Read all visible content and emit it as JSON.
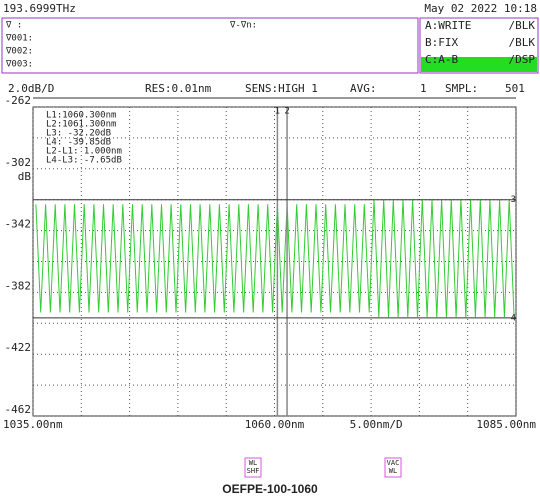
{
  "header": {
    "frequency": "193.6999THz",
    "datetime": "May 02 2022 10:18"
  },
  "marker_panel": {
    "lines": [
      "∇ :",
      "∇001:",
      "∇002:",
      "∇003:"
    ],
    "delta": "∇-∇n:"
  },
  "traces": [
    {
      "label": "A:WRITE",
      "mode": "/BLK",
      "color": "#3333ee"
    },
    {
      "label": "B:FIX",
      "mode": "/BLK",
      "color": "#ee3333"
    },
    {
      "label": "C:A-B",
      "mode": "/DSP",
      "color": "#ffffff"
    }
  ],
  "settings": [
    "2.0dB/D",
    "RES:0.01nm",
    "SENS:HIGH 1",
    "AVG:",
    "1",
    "SMPL:",
    "501"
  ],
  "chart_data": {
    "type": "line",
    "x": [
      1035.3,
      1035.8,
      1036.3,
      1036.8,
      1037.3,
      1037.8,
      1038.3,
      1038.8,
      1039.3,
      1039.8,
      1040.3,
      1040.8,
      1041.3,
      1041.8,
      1042.3,
      1042.8,
      1043.3,
      1043.8,
      1044.3,
      1044.8,
      1045.3,
      1045.8,
      1046.3,
      1046.8,
      1047.3,
      1047.8,
      1048.3,
      1048.8,
      1049.3,
      1049.8,
      1050.3,
      1050.8,
      1051.3,
      1051.8,
      1052.3,
      1052.8,
      1053.3,
      1053.8,
      1054.3,
      1054.8,
      1055.3,
      1055.8,
      1056.3,
      1056.8,
      1057.3,
      1057.8,
      1058.3,
      1058.8,
      1059.3,
      1059.8,
      1060.3,
      1060.8,
      1061.3,
      1061.8,
      1062.3,
      1062.8,
      1063.3,
      1063.8,
      1064.3,
      1064.8,
      1065.3,
      1065.8,
      1066.3,
      1066.8,
      1067.3,
      1067.8,
      1068.3,
      1068.8,
      1069.3,
      1069.8,
      1070.3,
      1070.8,
      1071.3,
      1071.8,
      1072.3,
      1072.8,
      1073.3,
      1073.8,
      1074.3,
      1074.8,
      1075.3,
      1075.8,
      1076.3,
      1076.8,
      1077.3,
      1077.8,
      1078.3,
      1078.8,
      1079.3,
      1079.8,
      1080.3,
      1080.8,
      1081.3,
      1081.8,
      1082.3,
      1082.8,
      1083.3,
      1083.8,
      1084.3,
      1084.8
    ],
    "series": [
      {
        "color": "#33cc33",
        "values": [
          -32.5,
          -39.5,
          -32.5,
          -39.5,
          -32.5,
          -39.5,
          -32.5,
          -39.5,
          -32.5,
          -39.5,
          -32.5,
          -39.5,
          -32.5,
          -39.5,
          -32.5,
          -39.5,
          -32.5,
          -39.5,
          -32.5,
          -39.5,
          -32.5,
          -39.5,
          -32.5,
          -39.5,
          -32.5,
          -39.5,
          -32.5,
          -39.5,
          -32.5,
          -39.5,
          -32.5,
          -39.5,
          -32.5,
          -39.5,
          -32.5,
          -39.5,
          -32.5,
          -39.5,
          -32.5,
          -39.5,
          -32.5,
          -39.5,
          -32.5,
          -39.5,
          -32.5,
          -39.5,
          -32.5,
          -39.5,
          -32.5,
          -39.5,
          -32.5,
          -39.5,
          -32.5,
          -39.5,
          -32.5,
          -39.5,
          -32.5,
          -39.5,
          -32.5,
          -39.5,
          -32.5,
          -39.5,
          -32.5,
          -39.5,
          -32.5,
          -39.5,
          -32.5,
          -39.5,
          -32.5,
          -39.5,
          -32.2,
          -39.8,
          -32.2,
          -39.8,
          -32.2,
          -39.8,
          -32.2,
          -39.8,
          -32.2,
          -39.8,
          -32.2,
          -39.8,
          -32.2,
          -39.8,
          -32.2,
          -39.8,
          -32.2,
          -39.8,
          -32.2,
          -39.8,
          -32.2,
          -39.8,
          -32.2,
          -39.8,
          -32.2,
          -39.8,
          -32.2,
          -39.8,
          -32.2,
          -39.8
        ]
      }
    ],
    "xlim": [
      1035,
      1085
    ],
    "xticks": [
      {
        "value": 1035,
        "label": "1035.00nm"
      },
      {
        "value": 1060,
        "label": "1060.00nm"
      },
      {
        "value": 1085,
        "label": "1085.00nm"
      }
    ],
    "xgrid": [
      1035,
      1040,
      1045,
      1050,
      1055,
      1060,
      1065,
      1070,
      1075,
      1080,
      1085
    ],
    "ylim": [
      -46.2,
      -26.2
    ],
    "yticks": [
      {
        "value": -26.2,
        "label": "-262"
      },
      {
        "value": -30.2,
        "label": "-302"
      },
      {
        "value": -34.2,
        "label": "-342"
      },
      {
        "value": -38.2,
        "label": "-382"
      },
      {
        "value": -42.2,
        "label": "-422"
      },
      {
        "value": -46.2,
        "label": "-462"
      }
    ],
    "ygrid": [
      -26.2,
      -28.2,
      -30.2,
      -32.2,
      -34.2,
      -36.2,
      -38.2,
      -40.2,
      -42.2,
      -44.2,
      -46.2
    ],
    "y_unit": "dB",
    "x_scale": "5.00nm/D",
    "grid": true,
    "vmarkers": [
      {
        "label": "1",
        "value": 1060.3
      },
      {
        "label": "2",
        "value": 1061.3
      }
    ],
    "hmarkers": [
      {
        "label": "3",
        "value": -32.2
      },
      {
        "label": "4",
        "value": -39.85
      }
    ],
    "readout": [
      "L1:1060.300nm",
      "L2:1061.300nm",
      "L3:  -32.20dB",
      "L4:  -39.85dB",
      "L2-L1:  1.000nm",
      "L4-L3:  -7.65dB"
    ]
  },
  "buttons": [
    [
      "WL",
      "SHF"
    ],
    [
      "VAC",
      "WL"
    ]
  ],
  "caption": "OEFPE-100-1060"
}
